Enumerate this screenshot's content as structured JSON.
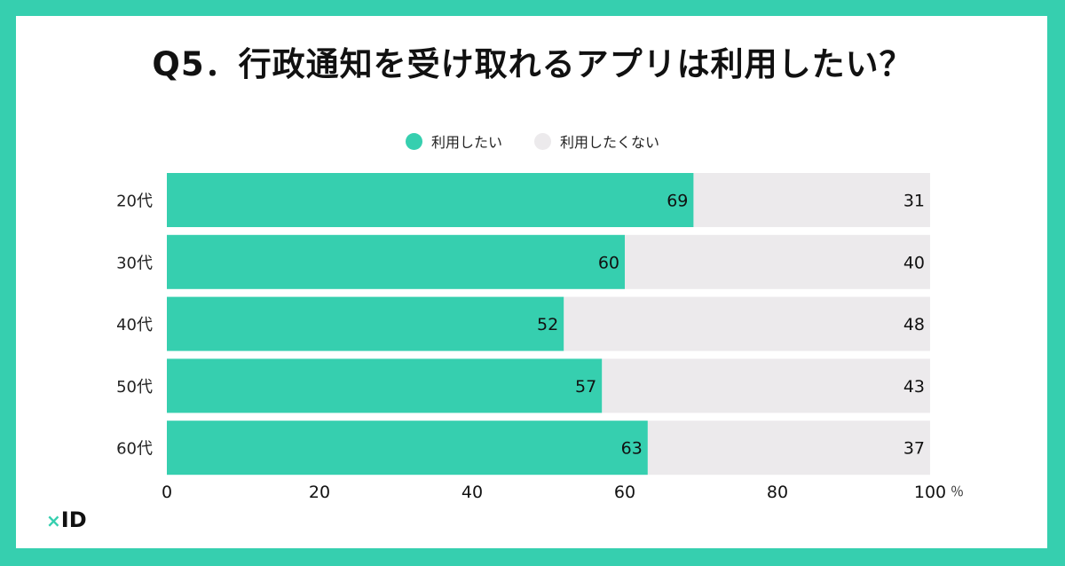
{
  "title": "Q5．行政通知を受け取れるアプリは利用したい？",
  "logo": {
    "mark": "×",
    "text": "ID"
  },
  "colors": {
    "frame": "#36cfaf",
    "yes": "#36cfaf",
    "no": "#eceaec"
  },
  "chart_data": {
    "type": "bar",
    "orientation": "horizontal",
    "stacked": true,
    "categories": [
      "20代",
      "30代",
      "40代",
      "50代",
      "60代"
    ],
    "series": [
      {
        "name": "利用したい",
        "values": [
          69,
          60,
          52,
          57,
          63
        ],
        "color": "#36cfaf"
      },
      {
        "name": "利用したくない",
        "values": [
          31,
          40,
          48,
          43,
          37
        ],
        "color": "#eceaec"
      }
    ],
    "xlim": [
      0,
      100
    ],
    "xticks": [
      "0",
      "20",
      "40",
      "60",
      "80",
      "100"
    ],
    "x_unit": "％",
    "legend_position": "top-center",
    "grid": false
  }
}
